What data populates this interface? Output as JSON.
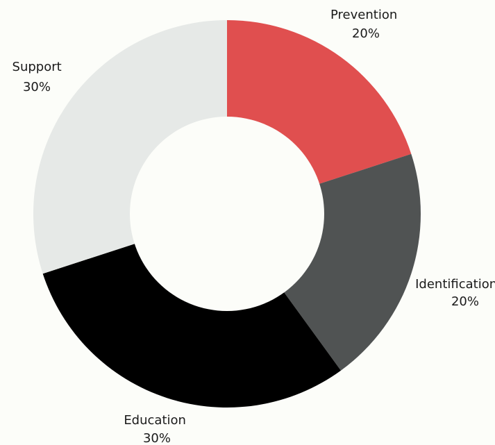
{
  "chart_data": {
    "type": "pie",
    "subtype": "donut",
    "title": "",
    "slices": [
      {
        "label": "Prevention",
        "value": 20,
        "display": "20%",
        "color": "#e04f4f"
      },
      {
        "label": "Identification",
        "value": 20,
        "display": "20%",
        "color": "#505353"
      },
      {
        "label": "Education",
        "value": 30,
        "display": "30%",
        "color": "#000000"
      },
      {
        "label": "Support",
        "value": 30,
        "display": "30%",
        "color": "#e6e9e7"
      }
    ],
    "start_angle": "12 o'clock",
    "direction": "clockwise",
    "legend": "none"
  }
}
